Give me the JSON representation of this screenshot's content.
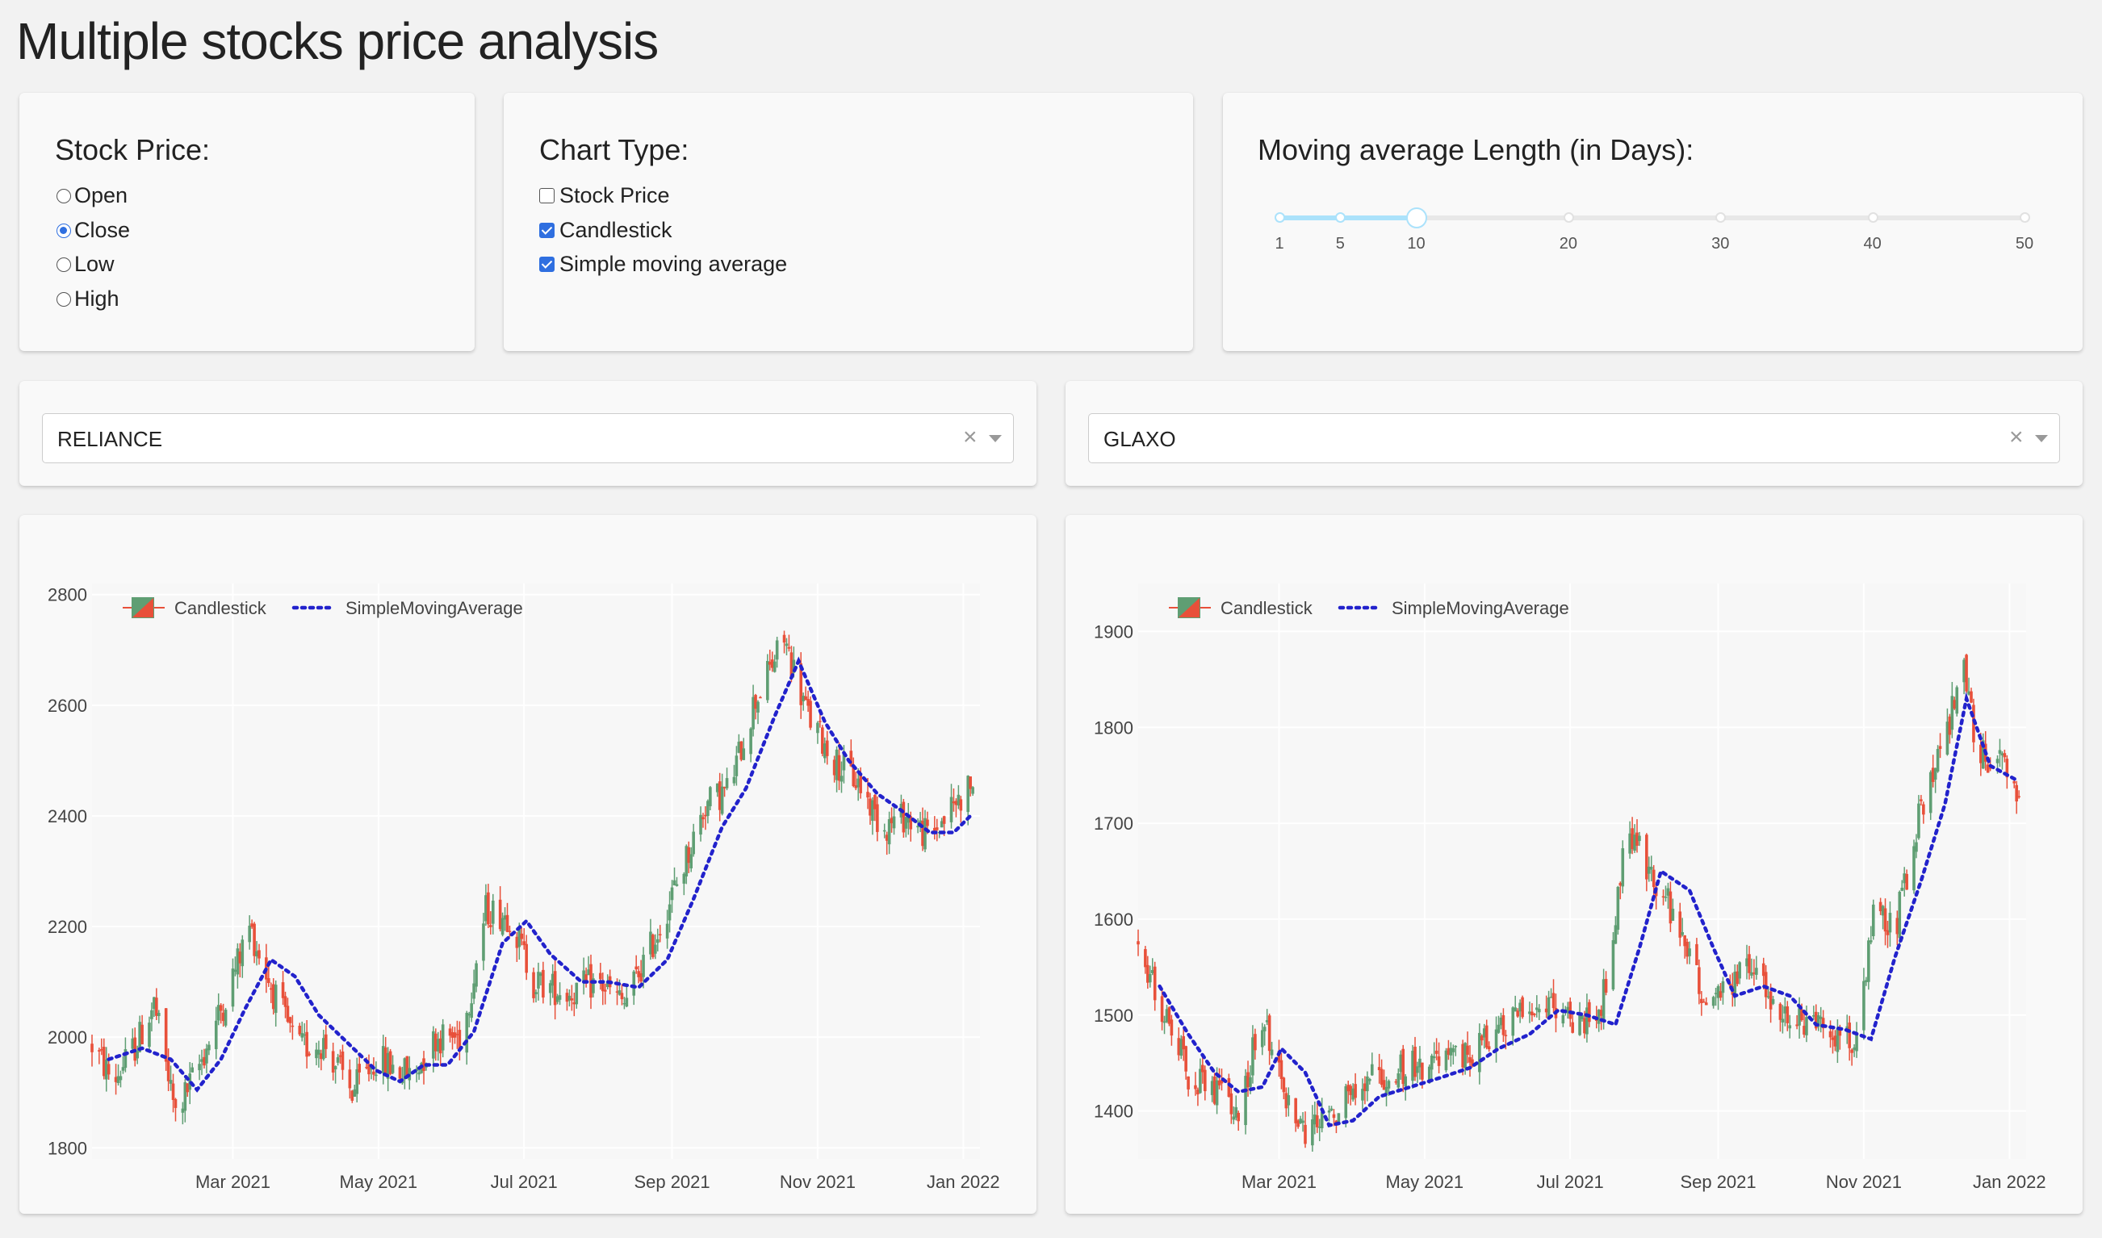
{
  "title": "Multiple stocks price analysis",
  "stock_price": {
    "label": "Stock Price:",
    "options": [
      "Open",
      "Close",
      "Low",
      "High"
    ],
    "selected": "Close"
  },
  "chart_type": {
    "label": "Chart Type:",
    "options": [
      {
        "label": "Stock Price",
        "checked": false
      },
      {
        "label": "Candlestick",
        "checked": true
      },
      {
        "label": "Simple moving average",
        "checked": true
      }
    ]
  },
  "moving_average": {
    "label": "Moving average Length (in Days):",
    "marks": [
      "1",
      "5",
      "10",
      "20",
      "30",
      "40",
      "50"
    ],
    "value": 10
  },
  "dropdowns": {
    "left": {
      "value": "RELIANCE",
      "clear": "×"
    },
    "right": {
      "value": "GLAXO",
      "clear": "×"
    }
  },
  "colors": {
    "increasing": "#5f9e73",
    "decreasing": "#e8503a",
    "sma": "#2222cc",
    "slider": "#abe2fb",
    "accent": "#2f6fe0"
  },
  "chart_data": [
    {
      "type": "candlestick",
      "stock": "RELIANCE",
      "x_start": "2021-01-01",
      "x_end": "2022-01-08",
      "x_ticks": [
        "Mar 2021",
        "May 2021",
        "Jul 2021",
        "Sep 2021",
        "Nov 2021",
        "Jan 2022"
      ],
      "x_tick_dates": [
        "2021-03-01",
        "2021-05-01",
        "2021-07-01",
        "2021-09-01",
        "2021-11-01",
        "2022-01-01"
      ],
      "ylim": [
        1780,
        2820
      ],
      "y_ticks": [
        1800,
        2000,
        2200,
        2400,
        2600,
        2800
      ],
      "legend": [
        "Candlestick",
        "SimpleMovingAverage"
      ],
      "legend_position": "top-left",
      "grid": true,
      "close_path": [
        [
          "2021-01-01",
          1985
        ],
        [
          "2021-01-10",
          1920
        ],
        [
          "2021-01-20",
          1990
        ],
        [
          "2021-01-27",
          2060
        ],
        [
          "2021-02-05",
          1860
        ],
        [
          "2021-02-15",
          1950
        ],
        [
          "2021-02-25",
          2060
        ],
        [
          "2021-03-08",
          2200
        ],
        [
          "2021-03-18",
          2080
        ],
        [
          "2021-03-28",
          1980
        ],
        [
          "2021-04-08",
          1990
        ],
        [
          "2021-04-20",
          1900
        ],
        [
          "2021-04-30",
          1960
        ],
        [
          "2021-05-15",
          1930
        ],
        [
          "2021-05-25",
          2000
        ],
        [
          "2021-06-05",
          2000
        ],
        [
          "2021-06-15",
          2230
        ],
        [
          "2021-06-25",
          2220
        ],
        [
          "2021-07-05",
          2100
        ],
        [
          "2021-07-20",
          2080
        ],
        [
          "2021-08-01",
          2100
        ],
        [
          "2021-08-12",
          2060
        ],
        [
          "2021-08-25",
          2180
        ],
        [
          "2021-09-05",
          2300
        ],
        [
          "2021-09-15",
          2420
        ],
        [
          "2021-09-25",
          2450
        ],
        [
          "2021-10-05",
          2600
        ],
        [
          "2021-10-18",
          2720
        ],
        [
          "2021-10-28",
          2580
        ],
        [
          "2021-11-08",
          2500
        ],
        [
          "2021-11-18",
          2460
        ],
        [
          "2021-11-28",
          2380
        ],
        [
          "2021-12-08",
          2400
        ],
        [
          "2021-12-18",
          2360
        ],
        [
          "2021-12-28",
          2420
        ],
        [
          "2022-01-05",
          2460
        ]
      ],
      "sma": [
        [
          "2021-01-08",
          1960
        ],
        [
          "2021-01-22",
          1980
        ],
        [
          "2021-02-03",
          1960
        ],
        [
          "2021-02-14",
          1905
        ],
        [
          "2021-02-24",
          1960
        ],
        [
          "2021-03-06",
          2050
        ],
        [
          "2021-03-17",
          2140
        ],
        [
          "2021-03-27",
          2110
        ],
        [
          "2021-04-06",
          2040
        ],
        [
          "2021-04-18",
          1990
        ],
        [
          "2021-04-30",
          1940
        ],
        [
          "2021-05-10",
          1920
        ],
        [
          "2021-05-20",
          1950
        ],
        [
          "2021-05-30",
          1950
        ],
        [
          "2021-06-10",
          2010
        ],
        [
          "2021-06-22",
          2170
        ],
        [
          "2021-07-02",
          2210
        ],
        [
          "2021-07-12",
          2150
        ],
        [
          "2021-07-25",
          2100
        ],
        [
          "2021-08-05",
          2100
        ],
        [
          "2021-08-18",
          2090
        ],
        [
          "2021-08-30",
          2140
        ],
        [
          "2021-09-10",
          2250
        ],
        [
          "2021-09-22",
          2380
        ],
        [
          "2021-10-02",
          2450
        ],
        [
          "2021-10-14",
          2580
        ],
        [
          "2021-10-24",
          2680
        ],
        [
          "2021-11-04",
          2570
        ],
        [
          "2021-11-14",
          2500
        ],
        [
          "2021-11-26",
          2440
        ],
        [
          "2021-12-06",
          2410
        ],
        [
          "2021-12-18",
          2370
        ],
        [
          "2021-12-28",
          2370
        ],
        [
          "2022-01-04",
          2400
        ]
      ]
    },
    {
      "type": "candlestick",
      "stock": "GLAXO",
      "x_start": "2021-01-01",
      "x_end": "2022-01-08",
      "x_ticks": [
        "Mar 2021",
        "May 2021",
        "Jul 2021",
        "Sep 2021",
        "Nov 2021",
        "Jan 2022"
      ],
      "x_tick_dates": [
        "2021-03-01",
        "2021-05-01",
        "2021-07-01",
        "2021-09-01",
        "2021-11-01",
        "2022-01-01"
      ],
      "ylim": [
        1350,
        1950
      ],
      "y_ticks": [
        1400,
        1500,
        1600,
        1700,
        1800,
        1900
      ],
      "legend": [
        "Candlestick",
        "SimpleMovingAverage"
      ],
      "legend_position": "top-left",
      "grid": true,
      "close_path": [
        [
          "2021-01-01",
          1580
        ],
        [
          "2021-01-12",
          1500
        ],
        [
          "2021-01-22",
          1440
        ],
        [
          "2021-02-01",
          1420
        ],
        [
          "2021-02-12",
          1400
        ],
        [
          "2021-02-22",
          1500
        ],
        [
          "2021-03-02",
          1430
        ],
        [
          "2021-03-12",
          1380
        ],
        [
          "2021-03-22",
          1390
        ],
        [
          "2021-04-01",
          1420
        ],
        [
          "2021-04-15",
          1440
        ],
        [
          "2021-05-01",
          1450
        ],
        [
          "2021-05-15",
          1450
        ],
        [
          "2021-06-01",
          1480
        ],
        [
          "2021-06-12",
          1500
        ],
        [
          "2021-06-22",
          1520
        ],
        [
          "2021-07-05",
          1490
        ],
        [
          "2021-07-15",
          1520
        ],
        [
          "2021-07-25",
          1700
        ],
        [
          "2021-08-05",
          1640
        ],
        [
          "2021-08-15",
          1600
        ],
        [
          "2021-08-25",
          1520
        ],
        [
          "2021-09-05",
          1530
        ],
        [
          "2021-09-15",
          1550
        ],
        [
          "2021-09-25",
          1510
        ],
        [
          "2021-10-05",
          1490
        ],
        [
          "2021-10-18",
          1480
        ],
        [
          "2021-10-28",
          1470
        ],
        [
          "2021-11-05",
          1600
        ],
        [
          "2021-11-15",
          1600
        ],
        [
          "2021-11-25",
          1720
        ],
        [
          "2021-12-05",
          1780
        ],
        [
          "2021-12-12",
          1880
        ],
        [
          "2021-12-18",
          1780
        ],
        [
          "2021-12-28",
          1760
        ],
        [
          "2022-01-05",
          1730
        ]
      ],
      "sma": [
        [
          "2021-01-10",
          1530
        ],
        [
          "2021-01-22",
          1480
        ],
        [
          "2021-02-02",
          1440
        ],
        [
          "2021-02-12",
          1420
        ],
        [
          "2021-02-22",
          1425
        ],
        [
          "2021-03-02",
          1465
        ],
        [
          "2021-03-12",
          1440
        ],
        [
          "2021-03-22",
          1385
        ],
        [
          "2021-04-01",
          1390
        ],
        [
          "2021-04-12",
          1415
        ],
        [
          "2021-04-25",
          1425
        ],
        [
          "2021-05-08",
          1435
        ],
        [
          "2021-05-20",
          1445
        ],
        [
          "2021-06-01",
          1465
        ],
        [
          "2021-06-14",
          1480
        ],
        [
          "2021-06-26",
          1505
        ],
        [
          "2021-07-08",
          1500
        ],
        [
          "2021-07-20",
          1490
        ],
        [
          "2021-07-30",
          1570
        ],
        [
          "2021-08-08",
          1650
        ],
        [
          "2021-08-20",
          1630
        ],
        [
          "2021-08-30",
          1570
        ],
        [
          "2021-09-08",
          1520
        ],
        [
          "2021-09-20",
          1530
        ],
        [
          "2021-10-01",
          1520
        ],
        [
          "2021-10-12",
          1490
        ],
        [
          "2021-10-24",
          1485
        ],
        [
          "2021-11-04",
          1475
        ],
        [
          "2021-11-14",
          1560
        ],
        [
          "2021-11-25",
          1640
        ],
        [
          "2021-12-05",
          1720
        ],
        [
          "2021-12-14",
          1830
        ],
        [
          "2021-12-24",
          1760
        ],
        [
          "2022-01-04",
          1745
        ]
      ]
    }
  ]
}
